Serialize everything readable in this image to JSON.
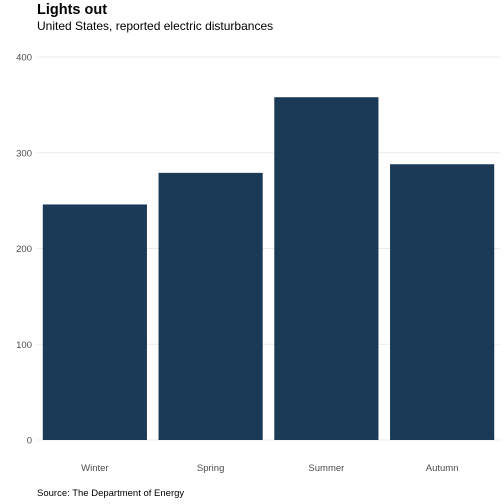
{
  "chart_data": {
    "type": "bar",
    "title": "Lights out",
    "subtitle": "United States, reported electric disturbances",
    "caption": "Source: The Department of Energy",
    "xlabel": "",
    "ylabel": "",
    "categories": [
      "Winter",
      "Spring",
      "Summer",
      "Autumn"
    ],
    "values": [
      246,
      279,
      358,
      288
    ],
    "ylim": [
      0,
      400
    ],
    "yticks": [
      0,
      100,
      200,
      300,
      400
    ],
    "grid": true,
    "bar_color": "#1a3a56"
  }
}
